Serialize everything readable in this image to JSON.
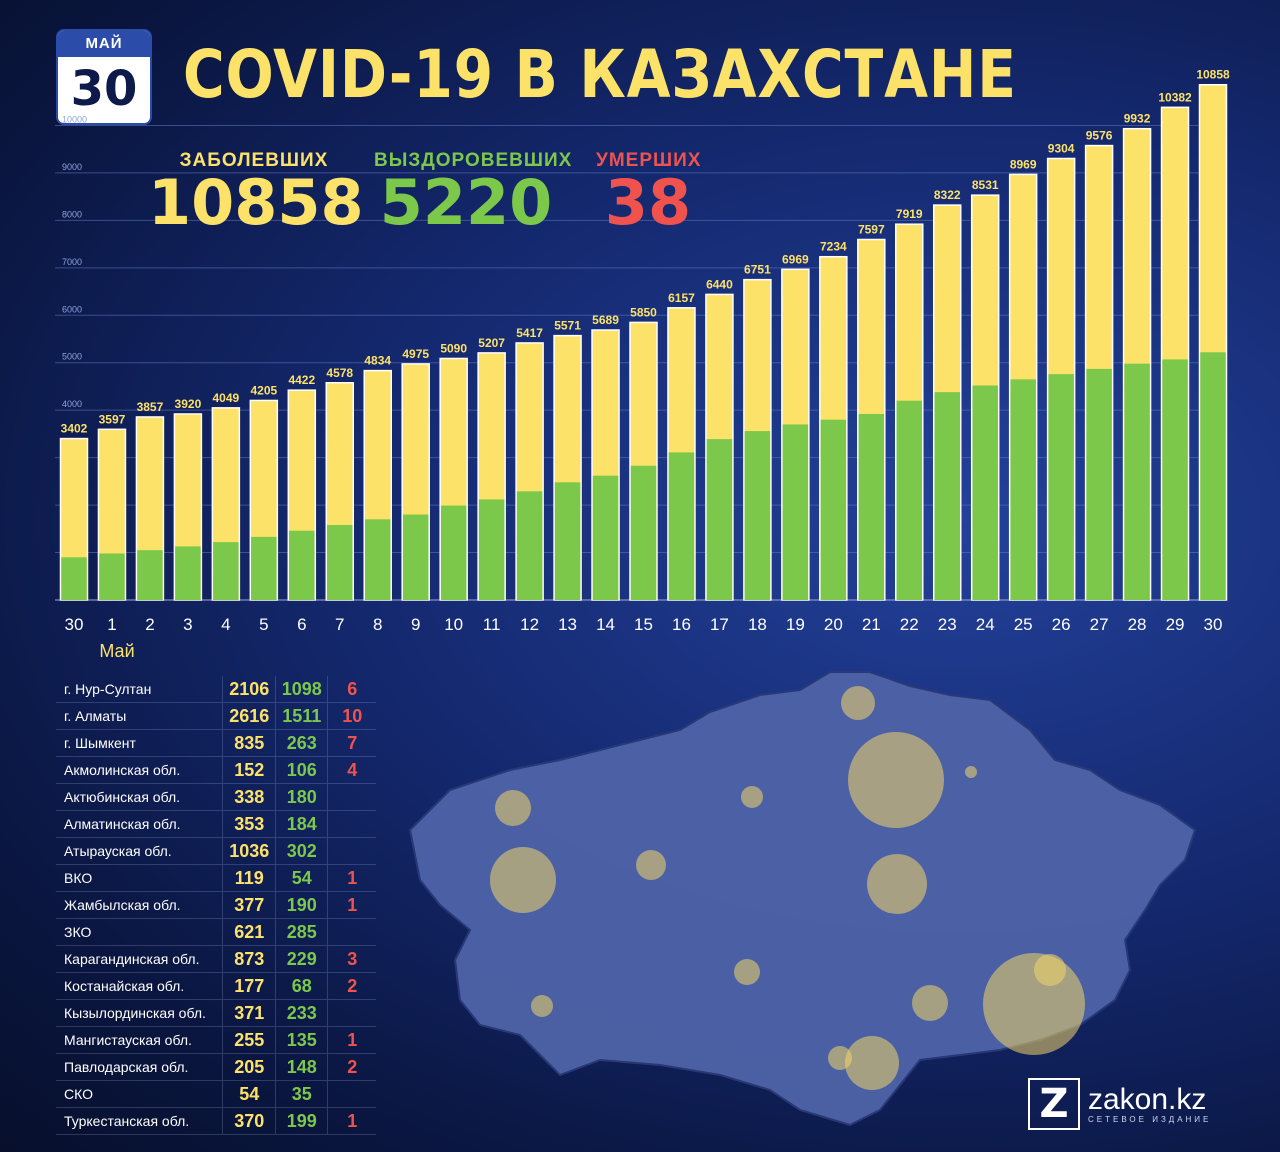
{
  "date": {
    "month": "МАЙ",
    "day": "30"
  },
  "title": "COVID-19 В КАЗАХСТАНЕ",
  "stats": {
    "cases_label": "ЗАБОЛЕВШИХ",
    "cases_value": "10858",
    "recovered_label": "ВЫЗДОРОВЕВШИХ",
    "recovered_value": "5220",
    "deaths_label": "УМЕРШИХ",
    "deaths_value": "38"
  },
  "colors": {
    "cases": "#fde26a",
    "recovered": "#7cc84a",
    "deaths": "#f0534e",
    "gridline": "#5f77c4"
  },
  "chart_data": {
    "type": "bar",
    "stacked_overlay": true,
    "categories": [
      "30",
      "1",
      "2",
      "3",
      "4",
      "5",
      "6",
      "7",
      "8",
      "9",
      "10",
      "11",
      "12",
      "13",
      "14",
      "15",
      "16",
      "17",
      "18",
      "19",
      "20",
      "21",
      "22",
      "23",
      "24",
      "25",
      "26",
      "27",
      "28",
      "29",
      "30"
    ],
    "month_label": "Май",
    "series": [
      {
        "name": "",
        "role": "cases",
        "values": [
          3402,
          3597,
          3857,
          3920,
          4049,
          4205,
          4422,
          4578,
          4834,
          4975,
          5090,
          5207,
          5417,
          5571,
          5689,
          5850,
          6157,
          6440,
          6751,
          6969,
          7234,
          7597,
          7919,
          8322,
          8531,
          8969,
          9304,
          9576,
          9932,
          10382,
          10858
        ]
      },
      {
        "name": "",
        "role": "recovered",
        "values": [
          900,
          980,
          1050,
          1130,
          1220,
          1330,
          1460,
          1580,
          1700,
          1800,
          1990,
          2120,
          2290,
          2480,
          2620,
          2830,
          3110,
          3390,
          3560,
          3700,
          3800,
          3920,
          4200,
          4380,
          4520,
          4650,
          4760,
          4870,
          4980,
          5070,
          5220
        ]
      }
    ],
    "ylim": [
      0,
      11000
    ],
    "y_ticks": [
      "1000",
      "2000",
      "3000",
      "4000",
      "5000",
      "6000",
      "7000",
      "8000",
      "9000",
      "10000"
    ],
    "grid": true
  },
  "regions": [
    {
      "name": "г. Нур-Султан",
      "cases": "2106",
      "recovered": "1098",
      "deaths": "6"
    },
    {
      "name": "г. Алматы",
      "cases": "2616",
      "recovered": "1511",
      "deaths": "10"
    },
    {
      "name": "г. Шымкент",
      "cases": "835",
      "recovered": "263",
      "deaths": "7"
    },
    {
      "name": "Акмолинская обл.",
      "cases": "152",
      "recovered": "106",
      "deaths": "4"
    },
    {
      "name": "Актюбинская обл.",
      "cases": "338",
      "recovered": "180",
      "deaths": ""
    },
    {
      "name": "Алматинская обл.",
      "cases": "353",
      "recovered": "184",
      "deaths": ""
    },
    {
      "name": "Атырауская обл.",
      "cases": "1036",
      "recovered": "302",
      "deaths": ""
    },
    {
      "name": "ВКО",
      "cases": "119",
      "recovered": "54",
      "deaths": "1"
    },
    {
      "name": "Жамбылская обл.",
      "cases": "377",
      "recovered": "190",
      "deaths": "1"
    },
    {
      "name": "ЗКО",
      "cases": "621",
      "recovered": "285",
      "deaths": ""
    },
    {
      "name": "Карагандинская обл.",
      "cases": "873",
      "recovered": "229",
      "deaths": "3"
    },
    {
      "name": "Костанайская обл.",
      "cases": "177",
      "recovered": "68",
      "deaths": "2"
    },
    {
      "name": "Кызылординская обл.",
      "cases": "371",
      "recovered": "233",
      "deaths": ""
    },
    {
      "name": "Мангистауская обл.",
      "cases": "255",
      "recovered": "135",
      "deaths": "1"
    },
    {
      "name": "Павлодарская обл.",
      "cases": "205",
      "recovered": "148",
      "deaths": "2"
    },
    {
      "name": "СКО",
      "cases": "54",
      "recovered": "35",
      "deaths": ""
    },
    {
      "name": "Туркестанская обл.",
      "cases": "370",
      "recovered": "199",
      "deaths": "1"
    }
  ],
  "logo": {
    "mark": "Z",
    "name": "zakon.kz",
    "subtitle": "СЕТЕВОЕ ИЗДАНИЕ"
  }
}
